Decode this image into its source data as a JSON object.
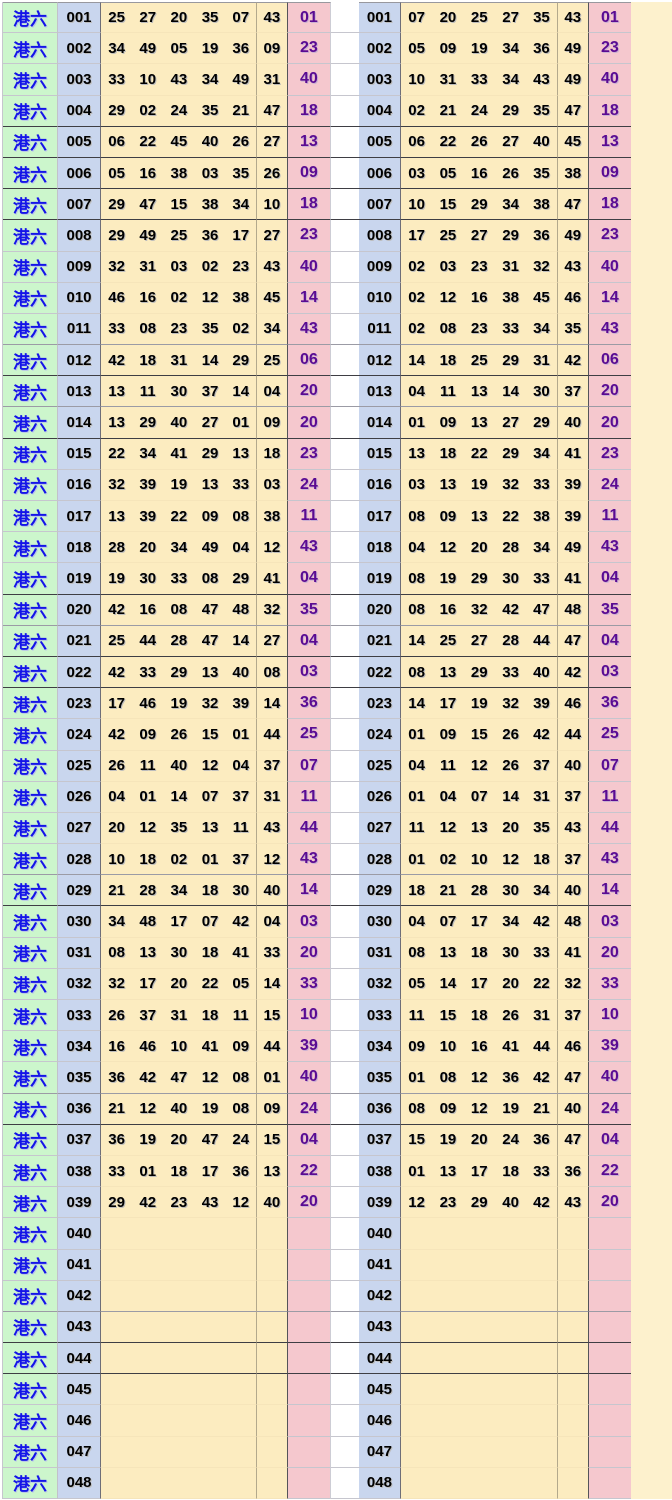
{
  "colors": {
    "green": "#ccf6cc",
    "blue": "#c9d6ee",
    "yellow": "#fcecc0",
    "pink": "#f5c8ce",
    "gapcolor": "#ffffff",
    "filler": "#fdf1cd",
    "border_light": "#c6c6ce",
    "border_medium": "#9b9ba5",
    "border_dark": "#3e3e44",
    "label_text": "#1414e8",
    "number_text": "#000000",
    "special_text": "#5a0b92"
  },
  "row_separators": {
    "dark_after": [
      "004",
      "005",
      "006",
      "007",
      "012",
      "014",
      "019",
      "021",
      "022",
      "029",
      "036",
      "043",
      "044"
    ],
    "medium_after": [
      "011",
      "013",
      "020",
      "028",
      "035",
      "042"
    ]
  },
  "left_table": {
    "market_label": "港六",
    "rows": [
      {
        "period": "001",
        "numbers": [
          "25",
          "27",
          "20",
          "35",
          "07",
          "43"
        ],
        "special": "01"
      },
      {
        "period": "002",
        "numbers": [
          "34",
          "49",
          "05",
          "19",
          "36",
          "09"
        ],
        "special": "23"
      },
      {
        "period": "003",
        "numbers": [
          "33",
          "10",
          "43",
          "34",
          "49",
          "31"
        ],
        "special": "40"
      },
      {
        "period": "004",
        "numbers": [
          "29",
          "02",
          "24",
          "35",
          "21",
          "47"
        ],
        "special": "18"
      },
      {
        "period": "005",
        "numbers": [
          "06",
          "22",
          "45",
          "40",
          "26",
          "27"
        ],
        "special": "13"
      },
      {
        "period": "006",
        "numbers": [
          "05",
          "16",
          "38",
          "03",
          "35",
          "26"
        ],
        "special": "09"
      },
      {
        "period": "007",
        "numbers": [
          "29",
          "47",
          "15",
          "38",
          "34",
          "10"
        ],
        "special": "18"
      },
      {
        "period": "008",
        "numbers": [
          "29",
          "49",
          "25",
          "36",
          "17",
          "27"
        ],
        "special": "23"
      },
      {
        "period": "009",
        "numbers": [
          "32",
          "31",
          "03",
          "02",
          "23",
          "43"
        ],
        "special": "40"
      },
      {
        "period": "010",
        "numbers": [
          "46",
          "16",
          "02",
          "12",
          "38",
          "45"
        ],
        "special": "14"
      },
      {
        "period": "011",
        "numbers": [
          "33",
          "08",
          "23",
          "35",
          "02",
          "34"
        ],
        "special": "43"
      },
      {
        "period": "012",
        "numbers": [
          "42",
          "18",
          "31",
          "14",
          "29",
          "25"
        ],
        "special": "06"
      },
      {
        "period": "013",
        "numbers": [
          "13",
          "11",
          "30",
          "37",
          "14",
          "04"
        ],
        "special": "20"
      },
      {
        "period": "014",
        "numbers": [
          "13",
          "29",
          "40",
          "27",
          "01",
          "09"
        ],
        "special": "20"
      },
      {
        "period": "015",
        "numbers": [
          "22",
          "34",
          "41",
          "29",
          "13",
          "18"
        ],
        "special": "23"
      },
      {
        "period": "016",
        "numbers": [
          "32",
          "39",
          "19",
          "13",
          "33",
          "03"
        ],
        "special": "24"
      },
      {
        "period": "017",
        "numbers": [
          "13",
          "39",
          "22",
          "09",
          "08",
          "38"
        ],
        "special": "11"
      },
      {
        "period": "018",
        "numbers": [
          "28",
          "20",
          "34",
          "49",
          "04",
          "12"
        ],
        "special": "43"
      },
      {
        "period": "019",
        "numbers": [
          "19",
          "30",
          "33",
          "08",
          "29",
          "41"
        ],
        "special": "04"
      },
      {
        "period": "020",
        "numbers": [
          "42",
          "16",
          "08",
          "47",
          "48",
          "32"
        ],
        "special": "35"
      },
      {
        "period": "021",
        "numbers": [
          "25",
          "44",
          "28",
          "47",
          "14",
          "27"
        ],
        "special": "04"
      },
      {
        "period": "022",
        "numbers": [
          "42",
          "33",
          "29",
          "13",
          "40",
          "08"
        ],
        "special": "03"
      },
      {
        "period": "023",
        "numbers": [
          "17",
          "46",
          "19",
          "32",
          "39",
          "14"
        ],
        "special": "36"
      },
      {
        "period": "024",
        "numbers": [
          "42",
          "09",
          "26",
          "15",
          "01",
          "44"
        ],
        "special": "25"
      },
      {
        "period": "025",
        "numbers": [
          "26",
          "11",
          "40",
          "12",
          "04",
          "37"
        ],
        "special": "07"
      },
      {
        "period": "026",
        "numbers": [
          "04",
          "01",
          "14",
          "07",
          "37",
          "31"
        ],
        "special": "11"
      },
      {
        "period": "027",
        "numbers": [
          "20",
          "12",
          "35",
          "13",
          "11",
          "43"
        ],
        "special": "44"
      },
      {
        "period": "028",
        "numbers": [
          "10",
          "18",
          "02",
          "01",
          "37",
          "12"
        ],
        "special": "43"
      },
      {
        "period": "029",
        "numbers": [
          "21",
          "28",
          "34",
          "18",
          "30",
          "40"
        ],
        "special": "14"
      },
      {
        "period": "030",
        "numbers": [
          "34",
          "48",
          "17",
          "07",
          "42",
          "04"
        ],
        "special": "03"
      },
      {
        "period": "031",
        "numbers": [
          "08",
          "13",
          "30",
          "18",
          "41",
          "33"
        ],
        "special": "20"
      },
      {
        "period": "032",
        "numbers": [
          "32",
          "17",
          "20",
          "22",
          "05",
          "14"
        ],
        "special": "33"
      },
      {
        "period": "033",
        "numbers": [
          "26",
          "37",
          "31",
          "18",
          "11",
          "15"
        ],
        "special": "10"
      },
      {
        "period": "034",
        "numbers": [
          "16",
          "46",
          "10",
          "41",
          "09",
          "44"
        ],
        "special": "39"
      },
      {
        "period": "035",
        "numbers": [
          "36",
          "42",
          "47",
          "12",
          "08",
          "01"
        ],
        "special": "40"
      },
      {
        "period": "036",
        "numbers": [
          "21",
          "12",
          "40",
          "19",
          "08",
          "09"
        ],
        "special": "24"
      },
      {
        "period": "037",
        "numbers": [
          "36",
          "19",
          "20",
          "47",
          "24",
          "15"
        ],
        "special": "04"
      },
      {
        "period": "038",
        "numbers": [
          "33",
          "01",
          "18",
          "17",
          "36",
          "13"
        ],
        "special": "22"
      },
      {
        "period": "039",
        "numbers": [
          "29",
          "42",
          "23",
          "43",
          "12",
          "40"
        ],
        "special": "20"
      },
      {
        "period": "040",
        "numbers": [
          "",
          "",
          "",
          "",
          "",
          ""
        ],
        "special": ""
      },
      {
        "period": "041",
        "numbers": [
          "",
          "",
          "",
          "",
          "",
          ""
        ],
        "special": ""
      },
      {
        "period": "042",
        "numbers": [
          "",
          "",
          "",
          "",
          "",
          ""
        ],
        "special": ""
      },
      {
        "period": "043",
        "numbers": [
          "",
          "",
          "",
          "",
          "",
          ""
        ],
        "special": ""
      },
      {
        "period": "044",
        "numbers": [
          "",
          "",
          "",
          "",
          "",
          ""
        ],
        "special": ""
      },
      {
        "period": "045",
        "numbers": [
          "",
          "",
          "",
          "",
          "",
          ""
        ],
        "special": ""
      },
      {
        "period": "046",
        "numbers": [
          "",
          "",
          "",
          "",
          "",
          ""
        ],
        "special": ""
      },
      {
        "period": "047",
        "numbers": [
          "",
          "",
          "",
          "",
          "",
          ""
        ],
        "special": ""
      },
      {
        "period": "048",
        "numbers": [
          "",
          "",
          "",
          "",
          "",
          ""
        ],
        "special": ""
      }
    ]
  },
  "right_table": {
    "rows": [
      {
        "period": "001",
        "numbers": [
          "07",
          "20",
          "25",
          "27",
          "35",
          "43"
        ],
        "special": "01"
      },
      {
        "period": "002",
        "numbers": [
          "05",
          "09",
          "19",
          "34",
          "36",
          "49"
        ],
        "special": "23"
      },
      {
        "period": "003",
        "numbers": [
          "10",
          "31",
          "33",
          "34",
          "43",
          "49"
        ],
        "special": "40"
      },
      {
        "period": "004",
        "numbers": [
          "02",
          "21",
          "24",
          "29",
          "35",
          "47"
        ],
        "special": "18"
      },
      {
        "period": "005",
        "numbers": [
          "06",
          "22",
          "26",
          "27",
          "40",
          "45"
        ],
        "special": "13"
      },
      {
        "period": "006",
        "numbers": [
          "03",
          "05",
          "16",
          "26",
          "35",
          "38"
        ],
        "special": "09"
      },
      {
        "period": "007",
        "numbers": [
          "10",
          "15",
          "29",
          "34",
          "38",
          "47"
        ],
        "special": "18"
      },
      {
        "period": "008",
        "numbers": [
          "17",
          "25",
          "27",
          "29",
          "36",
          "49"
        ],
        "special": "23"
      },
      {
        "period": "009",
        "numbers": [
          "02",
          "03",
          "23",
          "31",
          "32",
          "43"
        ],
        "special": "40"
      },
      {
        "period": "010",
        "numbers": [
          "02",
          "12",
          "16",
          "38",
          "45",
          "46"
        ],
        "special": "14"
      },
      {
        "period": "011",
        "numbers": [
          "02",
          "08",
          "23",
          "33",
          "34",
          "35"
        ],
        "special": "43"
      },
      {
        "period": "012",
        "numbers": [
          "14",
          "18",
          "25",
          "29",
          "31",
          "42"
        ],
        "special": "06"
      },
      {
        "period": "013",
        "numbers": [
          "04",
          "11",
          "13",
          "14",
          "30",
          "37"
        ],
        "special": "20"
      },
      {
        "period": "014",
        "numbers": [
          "01",
          "09",
          "13",
          "27",
          "29",
          "40"
        ],
        "special": "20"
      },
      {
        "period": "015",
        "numbers": [
          "13",
          "18",
          "22",
          "29",
          "34",
          "41"
        ],
        "special": "23"
      },
      {
        "period": "016",
        "numbers": [
          "03",
          "13",
          "19",
          "32",
          "33",
          "39"
        ],
        "special": "24"
      },
      {
        "period": "017",
        "numbers": [
          "08",
          "09",
          "13",
          "22",
          "38",
          "39"
        ],
        "special": "11"
      },
      {
        "period": "018",
        "numbers": [
          "04",
          "12",
          "20",
          "28",
          "34",
          "49"
        ],
        "special": "43"
      },
      {
        "period": "019",
        "numbers": [
          "08",
          "19",
          "29",
          "30",
          "33",
          "41"
        ],
        "special": "04"
      },
      {
        "period": "020",
        "numbers": [
          "08",
          "16",
          "32",
          "42",
          "47",
          "48"
        ],
        "special": "35"
      },
      {
        "period": "021",
        "numbers": [
          "14",
          "25",
          "27",
          "28",
          "44",
          "47"
        ],
        "special": "04"
      },
      {
        "period": "022",
        "numbers": [
          "08",
          "13",
          "29",
          "33",
          "40",
          "42"
        ],
        "special": "03"
      },
      {
        "period": "023",
        "numbers": [
          "14",
          "17",
          "19",
          "32",
          "39",
          "46"
        ],
        "special": "36"
      },
      {
        "period": "024",
        "numbers": [
          "01",
          "09",
          "15",
          "26",
          "42",
          "44"
        ],
        "special": "25"
      },
      {
        "period": "025",
        "numbers": [
          "04",
          "11",
          "12",
          "26",
          "37",
          "40"
        ],
        "special": "07"
      },
      {
        "period": "026",
        "numbers": [
          "01",
          "04",
          "07",
          "14",
          "31",
          "37"
        ],
        "special": "11"
      },
      {
        "period": "027",
        "numbers": [
          "11",
          "12",
          "13",
          "20",
          "35",
          "43"
        ],
        "special": "44"
      },
      {
        "period": "028",
        "numbers": [
          "01",
          "02",
          "10",
          "12",
          "18",
          "37"
        ],
        "special": "43"
      },
      {
        "period": "029",
        "numbers": [
          "18",
          "21",
          "28",
          "30",
          "34",
          "40"
        ],
        "special": "14"
      },
      {
        "period": "030",
        "numbers": [
          "04",
          "07",
          "17",
          "34",
          "42",
          "48"
        ],
        "special": "03"
      },
      {
        "period": "031",
        "numbers": [
          "08",
          "13",
          "18",
          "30",
          "33",
          "41"
        ],
        "special": "20"
      },
      {
        "period": "032",
        "numbers": [
          "05",
          "14",
          "17",
          "20",
          "22",
          "32"
        ],
        "special": "33"
      },
      {
        "period": "033",
        "numbers": [
          "11",
          "15",
          "18",
          "26",
          "31",
          "37"
        ],
        "special": "10"
      },
      {
        "period": "034",
        "numbers": [
          "09",
          "10",
          "16",
          "41",
          "44",
          "46"
        ],
        "special": "39"
      },
      {
        "period": "035",
        "numbers": [
          "01",
          "08",
          "12",
          "36",
          "42",
          "47"
        ],
        "special": "40"
      },
      {
        "period": "036",
        "numbers": [
          "08",
          "09",
          "12",
          "19",
          "21",
          "40"
        ],
        "special": "24"
      },
      {
        "period": "037",
        "numbers": [
          "15",
          "19",
          "20",
          "24",
          "36",
          "47"
        ],
        "special": "04"
      },
      {
        "period": "038",
        "numbers": [
          "01",
          "13",
          "17",
          "18",
          "33",
          "36"
        ],
        "special": "22"
      },
      {
        "period": "039",
        "numbers": [
          "12",
          "23",
          "29",
          "40",
          "42",
          "43"
        ],
        "special": "20"
      },
      {
        "period": "040",
        "numbers": [
          "",
          "",
          "",
          "",
          "",
          ""
        ],
        "special": ""
      },
      {
        "period": "041",
        "numbers": [
          "",
          "",
          "",
          "",
          "",
          ""
        ],
        "special": ""
      },
      {
        "period": "042",
        "numbers": [
          "",
          "",
          "",
          "",
          "",
          ""
        ],
        "special": ""
      },
      {
        "period": "043",
        "numbers": [
          "",
          "",
          "",
          "",
          "",
          ""
        ],
        "special": ""
      },
      {
        "period": "044",
        "numbers": [
          "",
          "",
          "",
          "",
          "",
          ""
        ],
        "special": ""
      },
      {
        "period": "045",
        "numbers": [
          "",
          "",
          "",
          "",
          "",
          ""
        ],
        "special": ""
      },
      {
        "period": "046",
        "numbers": [
          "",
          "",
          "",
          "",
          "",
          ""
        ],
        "special": ""
      },
      {
        "period": "047",
        "numbers": [
          "",
          "",
          "",
          "",
          "",
          ""
        ],
        "special": ""
      },
      {
        "period": "048",
        "numbers": [
          "",
          "",
          "",
          "",
          "",
          ""
        ],
        "special": ""
      }
    ]
  }
}
